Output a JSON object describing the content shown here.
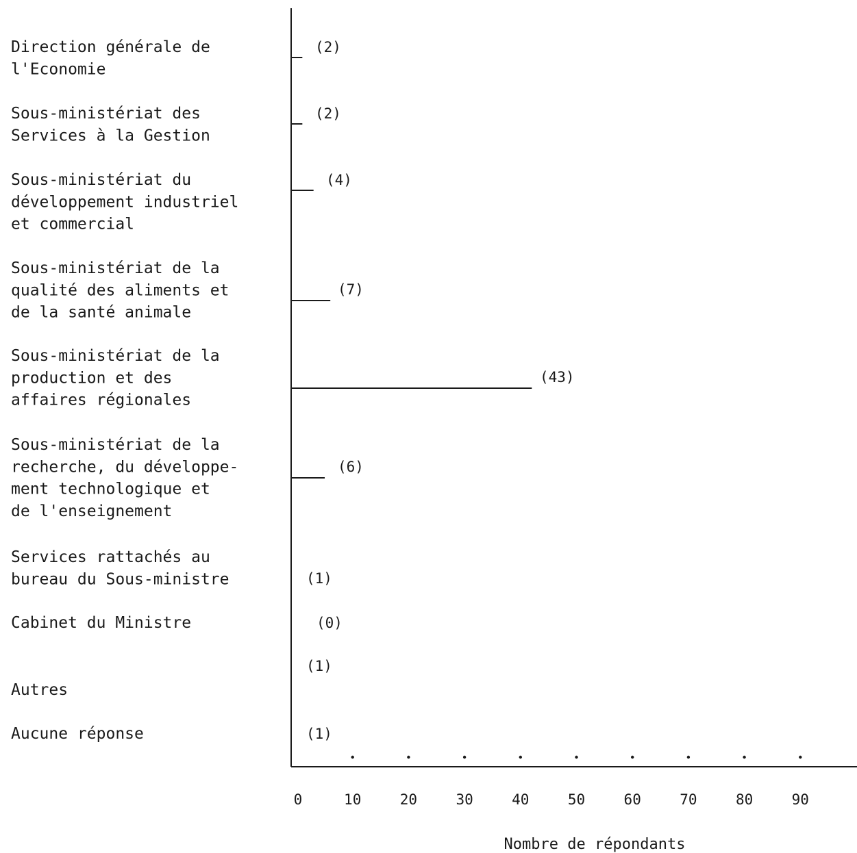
{
  "chart_data": {
    "type": "bar",
    "orientation": "horizontal",
    "categories": [
      [
        "Direction générale de",
        "l'Economie"
      ],
      [
        "Sous-ministériat des",
        "Services à la Gestion"
      ],
      [
        "Sous-ministériat du",
        "développement industriel",
        "et commercial"
      ],
      [
        "Sous-ministériat de la",
        "qualité des aliments et",
        "de la santé animale"
      ],
      [
        "Sous-ministériat de la",
        "production et des",
        "affaires régionales"
      ],
      [
        "Sous-ministériat de la",
        "recherche, du développe-",
        "ment technologique et",
        "de l'enseignement"
      ],
      [
        "Services rattachés au",
        "bureau du Sous-ministre"
      ],
      [
        "Cabinet du Ministre"
      ],
      [
        "Autres"
      ],
      [
        "Aucune réponse"
      ]
    ],
    "values": [
      2,
      2,
      4,
      7,
      43,
      6,
      1,
      0,
      1,
      1
    ],
    "value_labels": [
      "(2)",
      "(2)",
      "(4)",
      "(7)",
      "(43)",
      "(6)",
      "(1)",
      "(0)",
      "(1)",
      "(1)"
    ],
    "xlim": [
      0,
      100
    ],
    "xticks": [
      "0",
      "10",
      "20",
      "30",
      "40",
      "50",
      "60",
      "70",
      "80",
      "90"
    ],
    "xlabel": "Nombre de répondants",
    "ylabel": "",
    "title": "",
    "grid": false,
    "legend": "none",
    "colors": {
      "ink": "#1a1a1a",
      "background": "#ffffff"
    }
  }
}
